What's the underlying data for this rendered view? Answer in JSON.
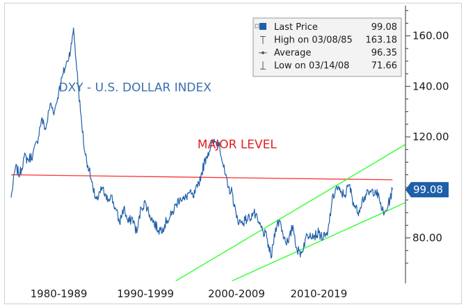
{
  "chart_data": {
    "type": "line",
    "title": "DXY - U.S. DOLLAR INDEX",
    "ylim": [
      62,
      172
    ],
    "xlim": [
      1978,
      2023.5
    ],
    "y_ticks": [
      {
        "value": 160,
        "label": "160.00"
      },
      {
        "value": 140,
        "label": "140.00"
      },
      {
        "value": 120,
        "label": "120.00"
      },
      {
        "value": 80,
        "label": "80.00"
      }
    ],
    "x_labels": [
      {
        "at": 1983.5,
        "label": "1980-1989"
      },
      {
        "at": 1993.5,
        "label": "1990-1999"
      },
      {
        "at": 2004.0,
        "label": "2000-2009"
      },
      {
        "at": 2013.5,
        "label": "2010-2019"
      }
    ],
    "series": [
      {
        "name": "Last Price",
        "color": "#1f5fa8",
        "x": [
          1978.0,
          1978.5,
          1979.0,
          1979.5,
          1980.0,
          1980.5,
          1981.0,
          1981.5,
          1982.0,
          1982.5,
          1983.0,
          1983.5,
          1984.0,
          1984.5,
          1985.0,
          1985.2,
          1985.5,
          1986.0,
          1986.5,
          1987.0,
          1987.5,
          1988.0,
          1988.5,
          1989.0,
          1989.5,
          1990.0,
          1990.5,
          1991.0,
          1991.5,
          1992.0,
          1992.5,
          1993.0,
          1993.5,
          1994.0,
          1994.5,
          1995.0,
          1995.5,
          1996.0,
          1996.5,
          1997.0,
          1997.5,
          1998.0,
          1998.5,
          1999.0,
          1999.5,
          2000.0,
          2000.5,
          2001.0,
          2001.5,
          2002.0,
          2002.5,
          2003.0,
          2003.5,
          2004.0,
          2004.5,
          2005.0,
          2005.5,
          2006.0,
          2006.5,
          2007.0,
          2007.5,
          2008.0,
          2008.5,
          2009.0,
          2009.5,
          2010.0,
          2010.5,
          2011.0,
          2011.5,
          2012.0,
          2012.5,
          2013.0,
          2013.5,
          2014.0,
          2014.5,
          2015.0,
          2015.5,
          2016.0,
          2016.5,
          2017.0,
          2017.5,
          2018.0,
          2018.5,
          2019.0,
          2019.5,
          2020.0,
          2020.5,
          2021.0,
          2021.5,
          2022.0
        ],
        "values": [
          96,
          108,
          105,
          112,
          111,
          113,
          118,
          127,
          123,
          133,
          130,
          138,
          145,
          150,
          157,
          163.18,
          150,
          130,
          114,
          107,
          98,
          95,
          100,
          95,
          97,
          92,
          86,
          92,
          86,
          88,
          82,
          92,
          94,
          89,
          86,
          83,
          84,
          87,
          89,
          93,
          96,
          95,
          98,
          96,
          100,
          106,
          112,
          116,
          118,
          118,
          108,
          100,
          98,
          88,
          86,
          87,
          88,
          90,
          86,
          83,
          80,
          72,
          84,
          87,
          80,
          78,
          85,
          75,
          74,
          80,
          82,
          81,
          82,
          80,
          81,
          94,
          100,
          98,
          97,
          101,
          94,
          90,
          95,
          97,
          98,
          99,
          95,
          89,
          93,
          99.08
        ]
      }
    ],
    "annotations": [
      {
        "text": "DXY - U.S. DOLLAR INDEX",
        "x": 1983.5,
        "y": 138,
        "color": "#3a6fb0"
      },
      {
        "text": "MAJOR LEVEL",
        "x": 1999.5,
        "y": 115.5,
        "color": "#e02020"
      }
    ],
    "lines": [
      {
        "name": "major-level",
        "color": "#ff3030",
        "x": [
          1978,
          2022
        ],
        "y": [
          105,
          103
        ]
      },
      {
        "name": "channel-upper",
        "color": "#33ff33",
        "x": [
          1997,
          2023.5
        ],
        "y": [
          63,
          117
        ]
      },
      {
        "name": "channel-lower",
        "color": "#33ff33",
        "x": [
          2003.5,
          2023.5
        ],
        "y": [
          63,
          94
        ]
      }
    ],
    "last_price": {
      "value": 99.08,
      "label": "99.08",
      "color": "#1f5fa8"
    },
    "legend": {
      "placement": "top-right",
      "entries": [
        {
          "name": "Last Price",
          "value": "99.08"
        },
        {
          "name": "High on 03/08/85",
          "value": "163.18"
        },
        {
          "name": "Average",
          "value": "96.35"
        },
        {
          "name": "Low on 03/14/08",
          "value": "71.66"
        }
      ]
    },
    "grid": false
  }
}
